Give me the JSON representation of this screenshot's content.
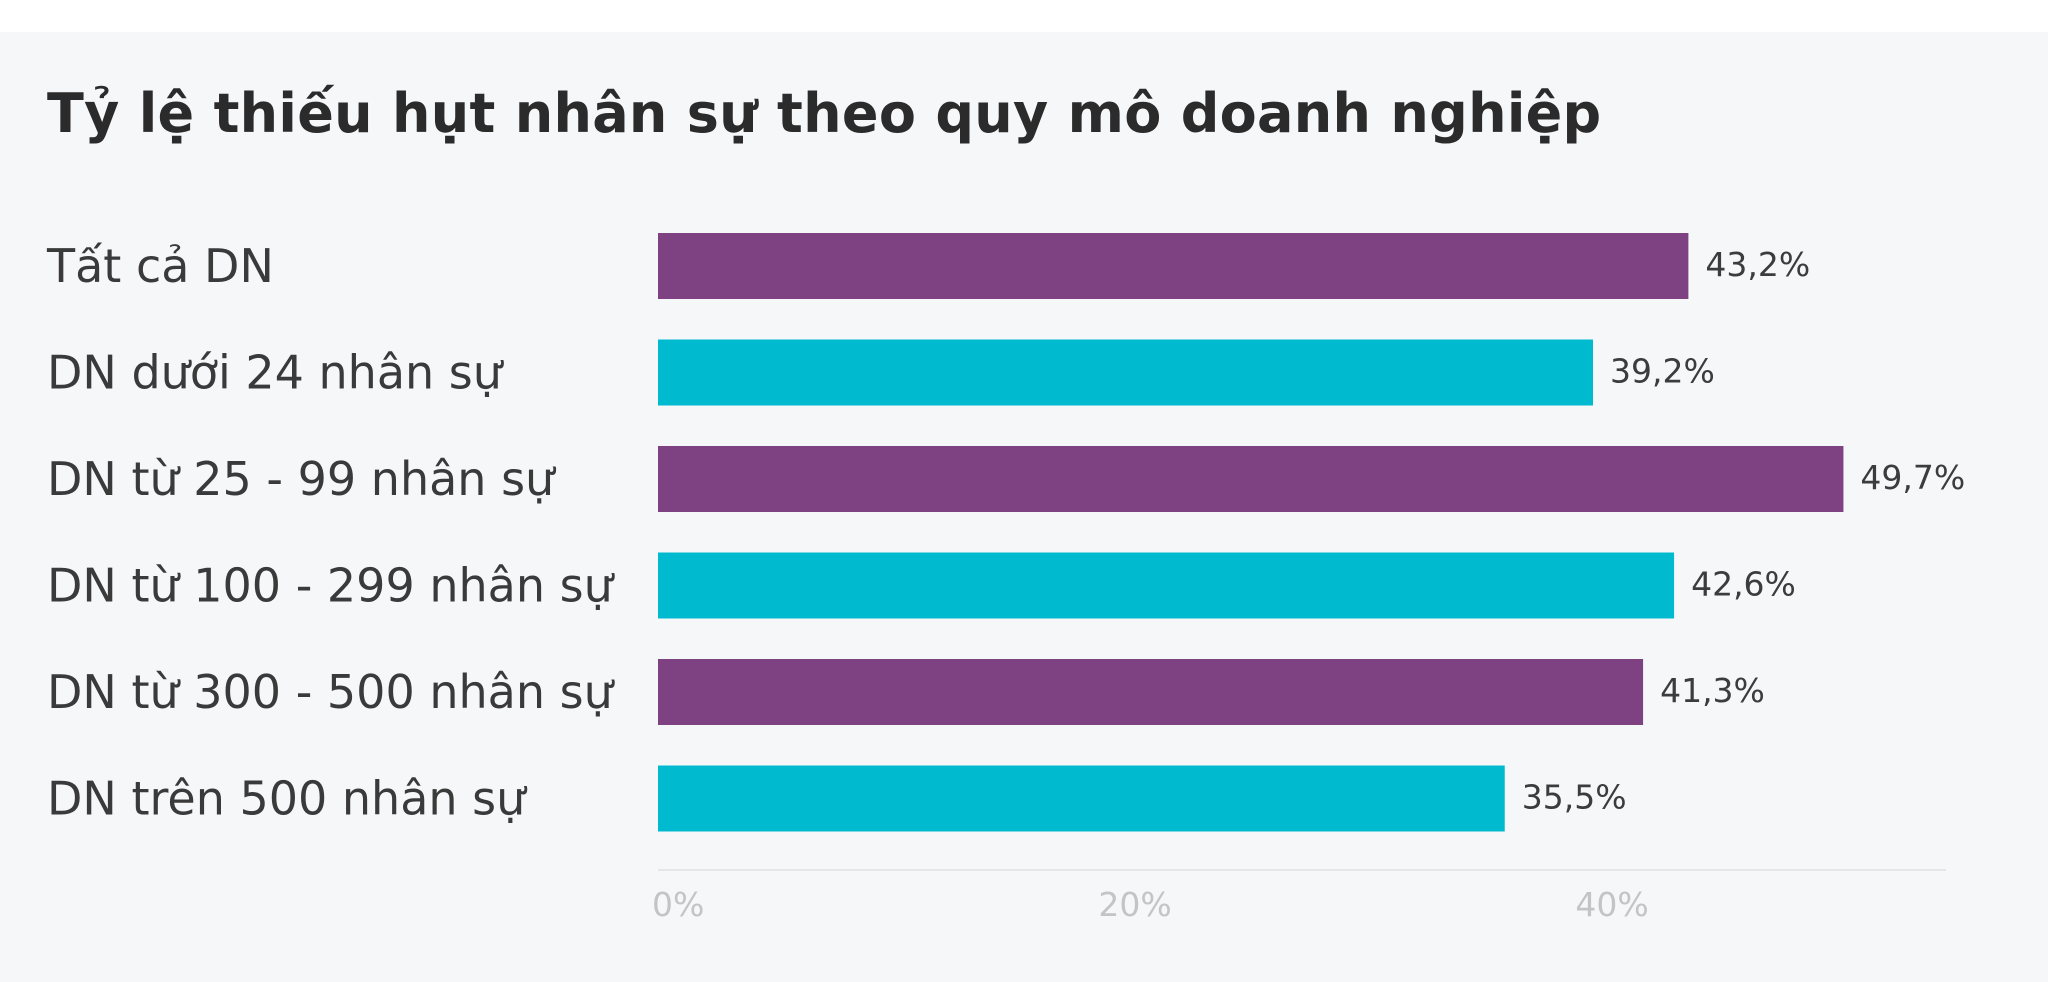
{
  "chart_data": {
    "type": "bar",
    "orientation": "horizontal",
    "title": "Tỷ lệ thiếu hụt nhân sự theo quy mô doanh nghiệp",
    "categories": [
      "Tất cả DN",
      "DN dưới 24 nhân sự",
      "DN từ 25 - 99 nhân sự",
      "DN từ 100 - 299 nhân sự",
      "DN từ 300 - 500 nhân sự",
      "DN trên 500 nhân sự"
    ],
    "values": [
      43.2,
      39.2,
      49.7,
      42.6,
      41.3,
      35.5
    ],
    "value_labels": [
      "43,2%",
      "39,2%",
      "49,7%",
      "42,6%",
      "41,3%",
      "35,5%"
    ],
    "bar_colors": [
      "#7e4283",
      "#00bacf",
      "#7e4283",
      "#00bacf",
      "#7e4283",
      "#00bacf"
    ],
    "xlim": [
      0,
      54
    ],
    "xticks": [
      0,
      20,
      40
    ],
    "xtick_labels": [
      "0%",
      "20%",
      "40%"
    ],
    "grid": false
  }
}
